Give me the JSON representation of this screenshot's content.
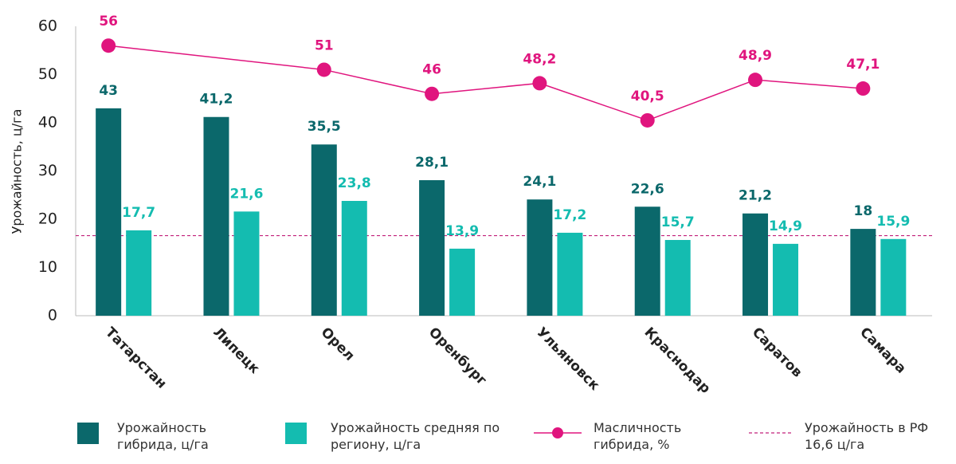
{
  "chart_data": {
    "type": "bar_line",
    "y_axis_label": "Урожайность, ц/га",
    "categories": [
      "Татарстан",
      "Липецк",
      "Орел",
      "Оренбург",
      "Ульяновск",
      "Краснодар",
      "Саратов",
      "Самара"
    ],
    "series": [
      {
        "name": "Урожайность гибрида, ц/га",
        "type": "bar",
        "color": "#0b686b",
        "values": [
          43,
          41.2,
          35.5,
          28.1,
          24.1,
          22.6,
          21.2,
          18
        ],
        "value_labels": [
          "43",
          "41,2",
          "35,5",
          "28,1",
          "24,1",
          "22,6",
          "21,2",
          "18"
        ]
      },
      {
        "name": "Урожайность средняя по региону, ц/га",
        "type": "bar",
        "color": "#14bcb0",
        "values": [
          17.7,
          21.6,
          23.8,
          13.9,
          17.2,
          15.7,
          14.9,
          15.9
        ],
        "value_labels": [
          "17,7",
          "21,6",
          "23,8",
          "13,9",
          "17,2",
          "15,7",
          "14,9",
          "15,9"
        ]
      },
      {
        "name": "Масличность гибрида, %",
        "type": "line",
        "color": "#e0157e",
        "values": [
          56,
          null,
          51,
          46,
          48.2,
          40.5,
          48.9,
          47.1
        ],
        "value_labels": [
          "56",
          null,
          "51",
          "46",
          "48,2",
          "40,5",
          "48,9",
          "47,1"
        ]
      }
    ],
    "reference_line": {
      "name": "Урожайность в РФ",
      "value": 16.6,
      "value_label": "16,6 ц/га",
      "color": "#c2207a"
    },
    "ylim": [
      0,
      60
    ],
    "yticks": [
      0,
      10,
      20,
      30,
      40,
      50,
      60
    ],
    "grid": false
  }
}
